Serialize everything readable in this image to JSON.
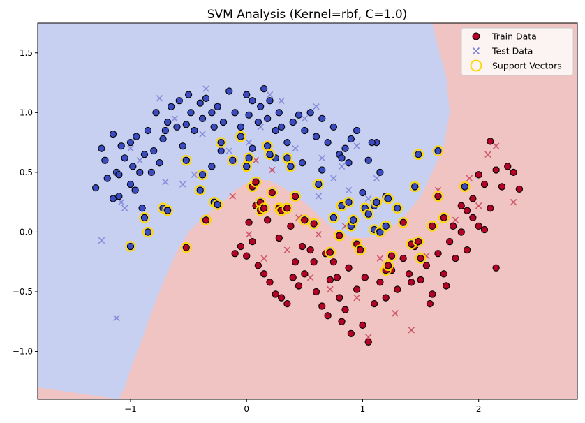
{
  "chart_data": {
    "type": "scatter",
    "title": "SVM Analysis (Kernel=rbf, C=1.0)",
    "xlabel": "",
    "ylabel": "",
    "xlim": [
      -1.8,
      2.85
    ],
    "ylim": [
      -1.4,
      1.75
    ],
    "xticks": [
      -1,
      0,
      1,
      2
    ],
    "yticks": [
      -1.0,
      -0.5,
      0.0,
      0.5,
      1.0,
      1.5
    ],
    "grid": false,
    "legend_position": "top-right",
    "legend": [
      {
        "label": "Train Data",
        "marker": "circle"
      },
      {
        "label": "Test Data",
        "marker": "x"
      },
      {
        "label": "Support Vectors",
        "marker": "ring"
      }
    ],
    "colors": {
      "class0_region": "#c8d0f2",
      "class1_region": "#f0c4c2",
      "class0_point": "#3b4cc0",
      "class1_point": "#b40426",
      "test_class0": "#7b83d6",
      "test_class1": "#c9485c",
      "support_ring": "#ffd700"
    },
    "boundary": [
      [
        -1.8,
        -1.3
      ],
      [
        -1.1,
        -1.4
      ],
      [
        -1.05,
        -1.3
      ],
      [
        -1.0,
        -1.15
      ],
      [
        -0.9,
        -0.9
      ],
      [
        -0.8,
        -0.62
      ],
      [
        -0.7,
        -0.38
      ],
      [
        -0.6,
        -0.16
      ],
      [
        -0.5,
        0.0
      ],
      [
        -0.4,
        0.1
      ],
      [
        -0.3,
        0.18
      ],
      [
        -0.2,
        0.25
      ],
      [
        -0.1,
        0.35
      ],
      [
        0.0,
        0.41
      ],
      [
        0.1,
        0.44
      ],
      [
        0.2,
        0.43
      ],
      [
        0.3,
        0.38
      ],
      [
        0.4,
        0.32
      ],
      [
        0.5,
        0.25
      ],
      [
        0.6,
        0.16
      ],
      [
        0.7,
        0.07
      ],
      [
        0.8,
        0.0
      ],
      [
        0.9,
        -0.04
      ],
      [
        1.0,
        -0.05
      ],
      [
        1.1,
        -0.04
      ],
      [
        1.2,
        0.0
      ],
      [
        1.3,
        0.08
      ],
      [
        1.4,
        0.18
      ],
      [
        1.5,
        0.3
      ],
      [
        1.6,
        0.5
      ],
      [
        1.7,
        0.72
      ],
      [
        1.75,
        1.0
      ],
      [
        1.72,
        1.3
      ],
      [
        1.65,
        1.55
      ],
      [
        1.6,
        1.75
      ]
    ],
    "train_class0": [
      [
        -1.3,
        0.37
      ],
      [
        -1.25,
        0.7
      ],
      [
        -1.22,
        0.6
      ],
      [
        -1.2,
        0.45
      ],
      [
        -1.15,
        0.82
      ],
      [
        -1.15,
        0.28
      ],
      [
        -1.12,
        0.5
      ],
      [
        -1.1,
        0.48
      ],
      [
        -1.1,
        0.3
      ],
      [
        -1.08,
        0.72
      ],
      [
        -1.05,
        0.62
      ],
      [
        -1.0,
        0.75
      ],
      [
        -1.0,
        0.4
      ],
      [
        -0.98,
        0.55
      ],
      [
        -0.96,
        0.35
      ],
      [
        -0.95,
        0.8
      ],
      [
        -0.92,
        0.5
      ],
      [
        -0.9,
        0.2
      ],
      [
        -0.88,
        0.65
      ],
      [
        -0.85,
        0.85
      ],
      [
        -0.82,
        0.5
      ],
      [
        -0.8,
        0.68
      ],
      [
        -0.78,
        1.0
      ],
      [
        -0.75,
        0.58
      ],
      [
        -0.72,
        0.78
      ],
      [
        -0.7,
        0.85
      ],
      [
        -0.68,
        0.92
      ],
      [
        -0.65,
        1.05
      ],
      [
        -0.6,
        0.88
      ],
      [
        -0.58,
        1.1
      ],
      [
        -0.55,
        0.72
      ],
      [
        -0.52,
        0.9
      ],
      [
        -0.5,
        1.15
      ],
      [
        -0.48,
        1.0
      ],
      [
        -0.45,
        0.85
      ],
      [
        -0.4,
        1.08
      ],
      [
        -0.38,
        0.95
      ],
      [
        -0.35,
        1.12
      ],
      [
        -0.3,
        1.0
      ],
      [
        -0.28,
        0.88
      ],
      [
        -0.25,
        1.05
      ],
      [
        -0.2,
        0.92
      ],
      [
        -0.15,
        1.18
      ],
      [
        -0.1,
        1.0
      ],
      [
        -0.05,
        0.88
      ],
      [
        0.0,
        1.15
      ],
      [
        0.02,
        0.98
      ],
      [
        0.05,
        1.1
      ],
      [
        0.1,
        0.92
      ],
      [
        0.12,
        1.05
      ],
      [
        0.15,
        1.2
      ],
      [
        0.18,
        0.95
      ],
      [
        0.2,
        1.1
      ],
      [
        0.25,
        0.85
      ],
      [
        0.28,
        1.0
      ],
      [
        0.3,
        0.88
      ],
      [
        0.35,
        0.75
      ],
      [
        0.4,
        0.92
      ],
      [
        0.45,
        0.98
      ],
      [
        0.5,
        0.85
      ],
      [
        0.55,
        1.0
      ],
      [
        0.6,
        0.8
      ],
      [
        0.65,
        0.95
      ],
      [
        0.7,
        0.75
      ],
      [
        0.75,
        0.88
      ],
      [
        0.8,
        0.65
      ],
      [
        0.85,
        0.7
      ],
      [
        0.88,
        0.58
      ],
      [
        0.9,
        0.78
      ],
      [
        0.95,
        0.85
      ],
      [
        1.0,
        0.33
      ],
      [
        1.05,
        0.6
      ],
      [
        1.1,
        0.22
      ],
      [
        1.12,
        0.75
      ],
      [
        1.15,
        0.5
      ],
      [
        1.2,
        0.3
      ],
      [
        -0.22,
        0.68
      ],
      [
        0.05,
        0.7
      ],
      [
        0.25,
        0.62
      ],
      [
        0.82,
        0.62
      ],
      [
        0.48,
        0.58
      ],
      [
        -0.3,
        0.55
      ],
      [
        0.65,
        0.52
      ],
      [
        1.08,
        0.75
      ]
    ],
    "train_class1": [
      [
        -0.1,
        -0.18
      ],
      [
        -0.05,
        -0.12
      ],
      [
        0.0,
        -0.2
      ],
      [
        0.05,
        -0.08
      ],
      [
        0.1,
        -0.28
      ],
      [
        0.15,
        -0.35
      ],
      [
        0.2,
        -0.42
      ],
      [
        0.25,
        -0.52
      ],
      [
        0.3,
        -0.55
      ],
      [
        0.35,
        -0.6
      ],
      [
        0.4,
        -0.38
      ],
      [
        0.42,
        -0.25
      ],
      [
        0.45,
        -0.45
      ],
      [
        0.5,
        -0.35
      ],
      [
        0.55,
        -0.15
      ],
      [
        0.6,
        -0.5
      ],
      [
        0.65,
        -0.62
      ],
      [
        0.7,
        -0.7
      ],
      [
        0.72,
        -0.4
      ],
      [
        0.75,
        -0.25
      ],
      [
        0.8,
        -0.55
      ],
      [
        0.82,
        -0.75
      ],
      [
        0.85,
        -0.65
      ],
      [
        0.88,
        -0.3
      ],
      [
        0.9,
        -0.85
      ],
      [
        0.95,
        -0.48
      ],
      [
        1.0,
        -0.78
      ],
      [
        1.02,
        -0.38
      ],
      [
        1.05,
        -0.92
      ],
      [
        1.1,
        -0.6
      ],
      [
        1.15,
        -0.42
      ],
      [
        1.2,
        -0.55
      ],
      [
        1.25,
        -0.32
      ],
      [
        1.3,
        -0.48
      ],
      [
        1.35,
        -0.22
      ],
      [
        1.4,
        -0.35
      ],
      [
        1.45,
        -0.12
      ],
      [
        1.5,
        -0.4
      ],
      [
        1.55,
        -0.28
      ],
      [
        1.6,
        -0.52
      ],
      [
        1.65,
        -0.18
      ],
      [
        1.7,
        -0.35
      ],
      [
        1.75,
        -0.08
      ],
      [
        1.8,
        -0.22
      ],
      [
        1.85,
        0.0
      ],
      [
        1.9,
        0.18
      ],
      [
        1.95,
        0.28
      ],
      [
        2.0,
        0.05
      ],
      [
        2.05,
        0.4
      ],
      [
        2.1,
        0.2
      ],
      [
        2.15,
        0.52
      ],
      [
        2.2,
        0.38
      ],
      [
        2.25,
        0.55
      ],
      [
        2.3,
        0.5
      ],
      [
        2.35,
        0.36
      ],
      [
        2.0,
        0.48
      ],
      [
        1.95,
        0.12
      ],
      [
        1.9,
        -0.15
      ],
      [
        1.85,
        0.22
      ],
      [
        2.05,
        0.02
      ],
      [
        2.1,
        0.76
      ],
      [
        0.08,
        0.22
      ],
      [
        0.02,
        0.08
      ],
      [
        0.18,
        0.1
      ],
      [
        0.28,
        -0.05
      ],
      [
        0.38,
        0.05
      ],
      [
        0.48,
        -0.12
      ],
      [
        0.58,
        -0.25
      ],
      [
        0.68,
        -0.18
      ],
      [
        0.78,
        -0.38
      ],
      [
        1.42,
        -0.42
      ],
      [
        1.58,
        -0.6
      ],
      [
        1.72,
        -0.45
      ],
      [
        2.15,
        -0.3
      ],
      [
        1.78,
        0.05
      ]
    ],
    "test_class0": [
      [
        -1.25,
        -0.07
      ],
      [
        -1.12,
        -0.72
      ],
      [
        -1.05,
        0.2
      ],
      [
        -1.0,
        0.7
      ],
      [
        -0.92,
        0.6
      ],
      [
        -0.75,
        1.12
      ],
      [
        -0.7,
        0.42
      ],
      [
        -0.62,
        0.95
      ],
      [
        -0.55,
        0.4
      ],
      [
        -0.45,
        0.48
      ],
      [
        -0.38,
        0.82
      ],
      [
        -0.35,
        1.2
      ],
      [
        -0.25,
        1.05
      ],
      [
        -0.15,
        0.68
      ],
      [
        0.02,
        0.75
      ],
      [
        0.12,
        0.88
      ],
      [
        0.2,
        1.15
      ],
      [
        0.3,
        1.1
      ],
      [
        0.42,
        0.7
      ],
      [
        0.5,
        0.95
      ],
      [
        0.6,
        1.05
      ],
      [
        0.65,
        0.62
      ],
      [
        0.75,
        0.45
      ],
      [
        0.82,
        0.55
      ],
      [
        0.88,
        0.35
      ],
      [
        0.95,
        0.72
      ],
      [
        1.05,
        0.28
      ],
      [
        1.12,
        0.45
      ],
      [
        0.62,
        0.3
      ],
      [
        -1.08,
        0.25
      ]
    ],
    "test_class1": [
      [
        -0.12,
        0.3
      ],
      [
        0.02,
        -0.02
      ],
      [
        0.08,
        0.6
      ],
      [
        0.15,
        -0.22
      ],
      [
        0.22,
        0.52
      ],
      [
        0.35,
        -0.15
      ],
      [
        0.45,
        0.12
      ],
      [
        0.55,
        -0.38
      ],
      [
        0.62,
        -0.02
      ],
      [
        0.72,
        -0.48
      ],
      [
        0.85,
        0.05
      ],
      [
        0.95,
        -0.55
      ],
      [
        1.05,
        -0.88
      ],
      [
        1.15,
        -0.22
      ],
      [
        1.28,
        -0.68
      ],
      [
        1.42,
        -0.82
      ],
      [
        1.55,
        -0.2
      ],
      [
        1.65,
        0.35
      ],
      [
        1.8,
        0.1
      ],
      [
        1.92,
        0.45
      ],
      [
        2.0,
        0.22
      ],
      [
        2.08,
        0.65
      ],
      [
        2.15,
        0.72
      ],
      [
        2.3,
        0.25
      ]
    ],
    "support_vectors": [
      [
        -1.0,
        -0.12
      ],
      [
        -0.88,
        0.12
      ],
      [
        -0.85,
        0.0
      ],
      [
        -0.72,
        0.2
      ],
      [
        -0.68,
        0.18
      ],
      [
        -0.52,
        0.6
      ],
      [
        -0.52,
        -0.13
      ],
      [
        -0.4,
        0.35
      ],
      [
        -0.38,
        0.48
      ],
      [
        -0.35,
        0.1
      ],
      [
        -0.28,
        0.25
      ],
      [
        -0.25,
        0.23
      ],
      [
        -0.22,
        0.75
      ],
      [
        -0.12,
        0.6
      ],
      [
        -0.05,
        0.8
      ],
      [
        0.0,
        0.55
      ],
      [
        0.02,
        0.62
      ],
      [
        0.05,
        0.38
      ],
      [
        0.08,
        0.42
      ],
      [
        0.12,
        0.18
      ],
      [
        0.12,
        0.25
      ],
      [
        0.15,
        0.2
      ],
      [
        0.18,
        0.72
      ],
      [
        0.2,
        0.65
      ],
      [
        0.22,
        0.33
      ],
      [
        0.28,
        0.2
      ],
      [
        0.3,
        0.18
      ],
      [
        0.35,
        0.2
      ],
      [
        0.35,
        0.62
      ],
      [
        0.38,
        0.55
      ],
      [
        0.42,
        0.3
      ],
      [
        0.5,
        0.1
      ],
      [
        0.58,
        0.07
      ],
      [
        0.62,
        0.4
      ],
      [
        0.72,
        -0.17
      ],
      [
        0.75,
        0.12
      ],
      [
        0.8,
        -0.03
      ],
      [
        0.82,
        0.22
      ],
      [
        0.88,
        0.25
      ],
      [
        0.9,
        0.05
      ],
      [
        0.92,
        0.1
      ],
      [
        0.95,
        -0.1
      ],
      [
        0.98,
        -0.15
      ],
      [
        1.02,
        0.2
      ],
      [
        1.05,
        0.15
      ],
      [
        1.1,
        0.02
      ],
      [
        1.12,
        0.25
      ],
      [
        1.15,
        0.0
      ],
      [
        1.2,
        0.05
      ],
      [
        1.22,
        0.28
      ],
      [
        1.25,
        -0.2
      ],
      [
        1.2,
        -0.32
      ],
      [
        1.3,
        0.2
      ],
      [
        1.35,
        0.08
      ],
      [
        1.42,
        -0.1
      ],
      [
        1.48,
        -0.08
      ],
      [
        1.45,
        0.38
      ],
      [
        1.48,
        0.65
      ],
      [
        1.5,
        -0.22
      ],
      [
        1.6,
        0.05
      ],
      [
        1.65,
        0.3
      ],
      [
        1.65,
        0.68
      ],
      [
        1.7,
        0.12
      ],
      [
        1.88,
        0.38
      ],
      [
        1.22,
        -0.28
      ]
    ]
  }
}
